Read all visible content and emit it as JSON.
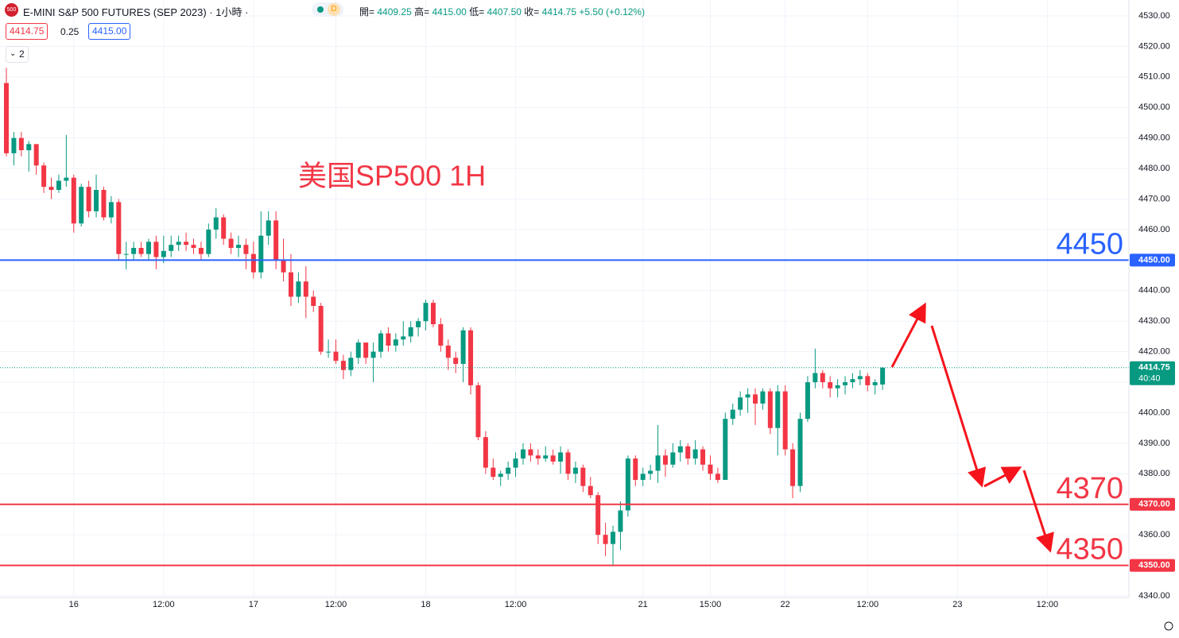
{
  "chart_data": {
    "type": "candlestick",
    "header": {
      "logo": "500",
      "symbol": "E-MINI S&P 500 FUTURES (SEP 2023) · 1小時 ·",
      "badge": "D",
      "ohlc": [
        {
          "label": "開=",
          "value": "4409.25"
        },
        {
          "label": "高=",
          "value": "4415.00"
        },
        {
          "label": "低=",
          "value": "4407.50"
        },
        {
          "label": "收=",
          "value": "4414.75"
        }
      ],
      "change": "+5.50 (+0.12%)",
      "sell": "4414.75",
      "spread": "0.25",
      "buy": "4415.00",
      "indicators": "2"
    },
    "annotation": "美国SP500 1H",
    "up_color": "#089981",
    "down_color": "#f23645",
    "ylim": [
      4340,
      4530
    ],
    "yticks": [
      {
        "value": 4340,
        "label": "4340.00"
      },
      {
        "value": 4350,
        "label": "4350.00"
      },
      {
        "value": 4360,
        "label": "4360.00"
      },
      {
        "value": 4370,
        "label": "4370.00"
      },
      {
        "value": 4380,
        "label": "4380.00"
      },
      {
        "value": 4390,
        "label": "4390.00"
      },
      {
        "value": 4400,
        "label": "4400.00"
      },
      {
        "value": 4410,
        "label": "4410.00"
      },
      {
        "value": 4420,
        "label": "4420.00"
      },
      {
        "value": 4430,
        "label": "4430.00"
      },
      {
        "value": 4440,
        "label": "4440.00"
      },
      {
        "value": 4450,
        "label": "4450.00"
      },
      {
        "value": 4460,
        "label": "4460.00"
      },
      {
        "value": 4470,
        "label": "4470.00"
      },
      {
        "value": 4480,
        "label": "4480.00"
      },
      {
        "value": 4490,
        "label": "4490.00"
      },
      {
        "value": 4500,
        "label": "4500.00"
      },
      {
        "value": 4510,
        "label": "4510.00"
      },
      {
        "value": 4520,
        "label": "4520.00"
      },
      {
        "value": 4530,
        "label": "4530.00"
      }
    ],
    "grid": true,
    "hlines": [
      {
        "value": 4450,
        "color": "#2962ff",
        "tag": "4450.00",
        "text": "4450"
      },
      {
        "value": 4370,
        "color": "#f23645",
        "tag": "4370.00",
        "text": "4370"
      },
      {
        "value": 4350,
        "color": "#f23645",
        "tag": "4350.00",
        "text": "4350"
      }
    ],
    "last": {
      "value": 4414.75,
      "tag": "4414.75",
      "countdown": "40:40"
    },
    "categories": [
      null,
      null,
      null,
      null,
      null,
      null,
      null,
      null,
      null,
      "16",
      null,
      null,
      null,
      null,
      null,
      null,
      null,
      null,
      null,
      null,
      null,
      "12:00",
      null,
      null,
      null,
      null,
      null,
      null,
      null,
      null,
      null,
      null,
      null,
      "17",
      null,
      null,
      null,
      null,
      null,
      null,
      null,
      null,
      null,
      null,
      "12:00",
      null,
      null,
      null,
      null,
      null,
      null,
      null,
      null,
      null,
      null,
      null,
      "18",
      null,
      null,
      null,
      null,
      null,
      null,
      null,
      null,
      null,
      null,
      null,
      "12:00",
      null,
      null,
      null,
      null,
      null,
      null,
      null,
      null,
      null,
      null,
      null,
      null,
      null,
      null,
      null,
      null,
      "21",
      null,
      null,
      null,
      null,
      null,
      null,
      null,
      null,
      "15:00",
      null,
      null,
      null,
      null,
      null,
      null,
      null,
      null,
      null,
      "22",
      null,
      null,
      null,
      null,
      null,
      null,
      null,
      null,
      null,
      null,
      "12:00",
      null,
      null,
      null,
      null,
      null,
      null,
      null,
      null,
      null,
      null,
      null,
      "23",
      null,
      null,
      null,
      null,
      null,
      null,
      null,
      null,
      null,
      null,
      null,
      "12:00",
      null,
      null,
      null,
      null,
      null,
      null,
      null,
      null,
      null,
      null
    ],
    "ohlc": [
      [
        4508,
        4513,
        4484,
        4485
      ],
      [
        4485,
        4492,
        4481,
        4490
      ],
      [
        4490,
        4492,
        4484,
        4486
      ],
      [
        4486,
        4489,
        4479,
        4488
      ],
      [
        4488,
        4488,
        4478,
        4481
      ],
      [
        4481,
        4482,
        4472,
        4474
      ],
      [
        4474,
        4477,
        4470,
        4473
      ],
      [
        4473,
        4478,
        4472,
        4476
      ],
      [
        4476,
        4491,
        4474,
        4477
      ],
      [
        4477,
        4478,
        4459,
        4462
      ],
      [
        4462,
        4475,
        4461,
        4474
      ],
      [
        4474,
        4476,
        4464,
        4466
      ],
      [
        4466,
        4478,
        4464,
        4473
      ],
      [
        4473,
        4474,
        4463,
        4464
      ],
      [
        4464,
        4471,
        4462,
        4469
      ],
      [
        4469,
        4470,
        4450,
        4452
      ],
      [
        4452,
        4456,
        4447,
        4452
      ],
      [
        4452,
        4456,
        4450,
        4454
      ],
      [
        4454,
        4456,
        4451,
        4452
      ],
      [
        4452,
        4457,
        4450,
        4456
      ],
      [
        4456,
        4458,
        4447,
        4451
      ],
      [
        4451,
        4458,
        4449,
        4453
      ],
      [
        4453,
        4458,
        4451,
        4455
      ],
      [
        4455,
        4458,
        4453,
        4456
      ],
      [
        4456,
        4459,
        4453,
        4455
      ],
      [
        4455,
        4457,
        4452,
        4454
      ],
      [
        4454,
        4456,
        4450,
        4452
      ],
      [
        4452,
        4462,
        4451,
        4460
      ],
      [
        4460,
        4467,
        4457,
        4464
      ],
      [
        4464,
        4465,
        4455,
        4457
      ],
      [
        4457,
        4459,
        4452,
        4454
      ],
      [
        4454,
        4458,
        4451,
        4455
      ],
      [
        4455,
        4457,
        4447,
        4452
      ],
      [
        4452,
        4456,
        4444,
        4446
      ],
      [
        4446,
        4466,
        4444,
        4458
      ],
      [
        4458,
        4466,
        4455,
        4463
      ],
      [
        4463,
        4466,
        4447,
        4450
      ],
      [
        4450,
        4457,
        4443,
        4446
      ],
      [
        4446,
        4452,
        4435,
        4438
      ],
      [
        4438,
        4446,
        4436,
        4443
      ],
      [
        4443,
        4448,
        4431,
        4438
      ],
      [
        4438,
        4440,
        4433,
        4435
      ],
      [
        4435,
        4436,
        4419,
        4420
      ],
      [
        4420,
        4424,
        4418,
        4420
      ],
      [
        4420,
        4424,
        4416,
        4417
      ],
      [
        4417,
        4419,
        4411,
        4414
      ],
      [
        4414,
        4420,
        4412,
        4418
      ],
      [
        4418,
        4424,
        4416,
        4423
      ],
      [
        4423,
        4423,
        4416,
        4418
      ],
      [
        4418,
        4423,
        4410,
        4420
      ],
      [
        4420,
        4427,
        4418,
        4426
      ],
      [
        4426,
        4428,
        4420,
        4422
      ],
      [
        4422,
        4426,
        4420,
        4424
      ],
      [
        4424,
        4430,
        4422,
        4425
      ],
      [
        4425,
        4430,
        4423,
        4428
      ],
      [
        4428,
        4431,
        4425,
        4430
      ],
      [
        4430,
        4437,
        4427,
        4436
      ],
      [
        4436,
        4437,
        4428,
        4429
      ],
      [
        4429,
        4431,
        4420,
        4422
      ],
      [
        4422,
        4424,
        4414,
        4418
      ],
      [
        4418,
        4420,
        4413,
        4416
      ],
      [
        4416,
        4428,
        4410,
        4427
      ],
      [
        4427,
        4428,
        4406,
        4409
      ],
      [
        4409,
        4410,
        4391,
        4392
      ],
      [
        4392,
        4394,
        4380,
        4382
      ],
      [
        4382,
        4385,
        4378,
        4379
      ],
      [
        4379,
        4381,
        4376,
        4380
      ],
      [
        4380,
        4384,
        4378,
        4382
      ],
      [
        4382,
        4387,
        4379,
        4385
      ],
      [
        4385,
        4390,
        4383,
        4388
      ],
      [
        4388,
        4390,
        4384,
        4386
      ],
      [
        4386,
        4388,
        4383,
        4385
      ],
      [
        4385,
        4389,
        4384,
        4386
      ],
      [
        4386,
        4388,
        4383,
        4384
      ],
      [
        4384,
        4389,
        4380,
        4387
      ],
      [
        4387,
        4388,
        4378,
        4380
      ],
      [
        4380,
        4384,
        4377,
        4382
      ],
      [
        4382,
        4383,
        4374,
        4376
      ],
      [
        4376,
        4379,
        4372,
        4373
      ],
      [
        4373,
        4374,
        4357,
        4360
      ],
      [
        4360,
        4364,
        4353,
        4357
      ],
      [
        4357,
        4363,
        4350,
        4361
      ],
      [
        4361,
        4371,
        4355,
        4368
      ],
      [
        4368,
        4386,
        4366,
        4385
      ],
      [
        4385,
        4386,
        4376,
        4378
      ],
      [
        4378,
        4382,
        4376,
        4380
      ],
      [
        4380,
        4383,
        4378,
        4381
      ],
      [
        4381,
        4396,
        4377,
        4386
      ],
      [
        4386,
        4388,
        4379,
        4383
      ],
      [
        4383,
        4390,
        4382,
        4387
      ],
      [
        4387,
        4391,
        4384,
        4389
      ],
      [
        4389,
        4390,
        4383,
        4385
      ],
      [
        4385,
        4391,
        4383,
        4388
      ],
      [
        4388,
        4389,
        4381,
        4383
      ],
      [
        4383,
        4386,
        4378,
        4380
      ],
      [
        4380,
        4382,
        4377,
        4378
      ],
      [
        4378,
        4400,
        4378,
        4398
      ],
      [
        4398,
        4403,
        4396,
        4401
      ],
      [
        4401,
        4407,
        4399,
        4405
      ],
      [
        4405,
        4408,
        4400,
        4406
      ],
      [
        4406,
        4408,
        4396,
        4403
      ],
      [
        4403,
        4408,
        4401,
        4407
      ],
      [
        4407,
        4408,
        4393,
        4395
      ],
      [
        4395,
        4409,
        4386,
        4407
      ],
      [
        4407,
        4409,
        4386,
        4388
      ],
      [
        4388,
        4390,
        4372,
        4376
      ],
      [
        4376,
        4400,
        4374,
        4398
      ],
      [
        4398,
        4412,
        4397,
        4410
      ],
      [
        4410,
        4421,
        4408,
        4413
      ],
      [
        4413,
        4414,
        4408,
        4410
      ],
      [
        4410,
        4412,
        4405,
        4408
      ],
      [
        4408,
        4411,
        4405,
        4409
      ],
      [
        4409,
        4412,
        4406,
        4410
      ],
      [
        4410,
        4413,
        4408,
        4411
      ],
      [
        4411,
        4414,
        4409,
        4412
      ],
      [
        4412,
        4413,
        4407,
        4409
      ],
      [
        4409,
        4411,
        4406,
        4410
      ],
      [
        4409.25,
        4415,
        4407.5,
        4414.75
      ],
      null,
      null,
      null,
      null,
      null,
      null,
      null,
      null,
      null,
      null,
      null,
      null,
      null,
      null,
      null,
      null,
      null,
      null,
      null,
      null,
      null,
      null,
      null,
      null,
      null,
      null,
      null,
      null,
      null,
      null,
      null,
      null
    ]
  }
}
